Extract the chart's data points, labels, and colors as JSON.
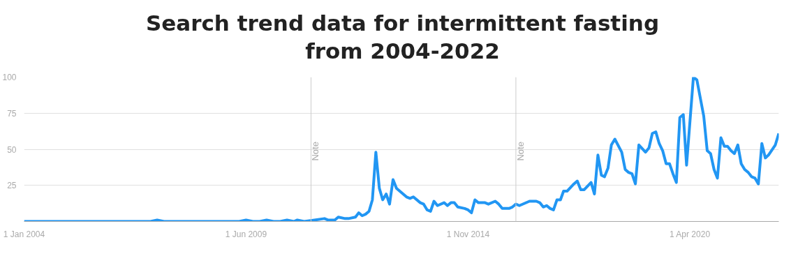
{
  "chart_data": {
    "type": "line",
    "title": "Search trend data for intermittent fasting from 2004-2022",
    "x": [
      "2004-01",
      "2007-02",
      "2007-04",
      "2007-06",
      "2009-04",
      "2009-06",
      "2009-08",
      "2009-10",
      "2009-12",
      "2010-02",
      "2010-04",
      "2010-06",
      "2010-08",
      "2010-09",
      "2010-11",
      "2011-02",
      "2011-05",
      "2011-06",
      "2011-08",
      "2011-09",
      "2011-11",
      "2011-12",
      "2012-02",
      "2012-03",
      "2012-04",
      "2012-05",
      "2012-06",
      "2012-07",
      "2012-08",
      "2012-09",
      "2012-10",
      "2012-11",
      "2012-12",
      "2013-01",
      "2013-02",
      "2013-05",
      "2013-06",
      "2013-07",
      "2013-09",
      "2013-10",
      "2013-11",
      "2013-12",
      "2014-01",
      "2014-02",
      "2014-04",
      "2014-05",
      "2014-06",
      "2014-07",
      "2014-08",
      "2014-10",
      "2014-11",
      "2014-12",
      "2015-01",
      "2015-02",
      "2015-04",
      "2015-05",
      "2015-07",
      "2015-08",
      "2015-09",
      "2015-11",
      "2015-12",
      "2016-01",
      "2016-02",
      "2016-05",
      "2016-07",
      "2016-08",
      "2016-09",
      "2016-10",
      "2016-11",
      "2016-12",
      "2017-01",
      "2017-02",
      "2017-03",
      "2017-04",
      "2017-06",
      "2017-07",
      "2017-08",
      "2017-09",
      "2017-11",
      "2017-12",
      "2018-01",
      "2018-02",
      "2018-03",
      "2018-04",
      "2018-05",
      "2018-06",
      "2018-08",
      "2018-09",
      "2018-10",
      "2018-11",
      "2018-12",
      "2019-01",
      "2019-03",
      "2019-04",
      "2019-05",
      "2019-06",
      "2019-07",
      "2019-08",
      "2019-09",
      "2019-10",
      "2019-11",
      "2019-12",
      "2020-01",
      "2020-02",
      "2020-03",
      "2020-05",
      "2020-06",
      "2020-08",
      "2020-09",
      "2020-10",
      "2020-11",
      "2020-12",
      "2021-01",
      "2021-02",
      "2021-03",
      "2021-04",
      "2021-05",
      "2021-06",
      "2021-07",
      "2021-08",
      "2021-09",
      "2021-10",
      "2021-11",
      "2021-12",
      "2022-01",
      "2022-02",
      "2022-03",
      "2022-05",
      "2022-06"
    ],
    "series": [
      {
        "color": "#2196f3",
        "values": [
          0,
          0,
          1,
          0,
          0,
          1,
          0,
          0,
          1,
          0,
          0,
          1,
          0,
          1,
          0,
          1,
          2,
          1,
          1,
          3,
          2,
          2,
          3,
          6,
          4,
          5,
          7,
          15,
          48,
          23,
          15,
          19,
          12,
          29,
          23,
          17,
          16,
          17,
          13,
          12,
          8,
          7,
          14,
          11,
          13,
          11,
          13,
          13,
          10,
          9,
          8,
          6,
          15,
          13,
          13,
          12,
          14,
          12,
          9,
          9,
          10,
          12,
          11,
          14,
          14,
          13,
          10,
          11,
          9,
          8,
          15,
          15,
          21,
          21,
          26,
          28,
          22,
          22,
          27,
          19,
          46,
          32,
          31,
          37,
          53,
          57,
          48,
          36,
          34,
          33,
          26,
          53,
          48,
          51,
          61,
          62,
          54,
          49,
          40,
          40,
          33,
          27,
          72,
          74,
          39,
          100,
          98,
          73,
          49,
          47,
          36,
          30,
          58,
          52,
          52,
          49,
          47,
          53,
          40,
          36,
          34,
          31,
          30,
          26,
          54,
          44,
          46,
          53,
          61
        ]
      }
    ],
    "xlim": [
      "2004-01",
      "2022-06"
    ],
    "xticks": [
      {
        "value": "2004-01-01",
        "label": "1 Jan 2004"
      },
      {
        "value": "2009-06-01",
        "label": "1 Jun 2009"
      },
      {
        "value": "2014-11-01",
        "label": "1 Nov 2014"
      },
      {
        "value": "2020-04-01",
        "label": "1 Apr 2020"
      }
    ],
    "ylim": [
      0,
      100
    ],
    "yticks": [
      {
        "value": 0,
        "label": null
      },
      25,
      50,
      75,
      100
    ],
    "ref_lines": [
      {
        "axis": "x",
        "value": "2011-01",
        "label": "Note",
        "color": "#cccccc"
      },
      {
        "axis": "x",
        "value": "2016-01",
        "label": "Note",
        "color": "#cccccc"
      }
    ],
    "grid": "y",
    "marker": "none",
    "line_style": "solid"
  }
}
